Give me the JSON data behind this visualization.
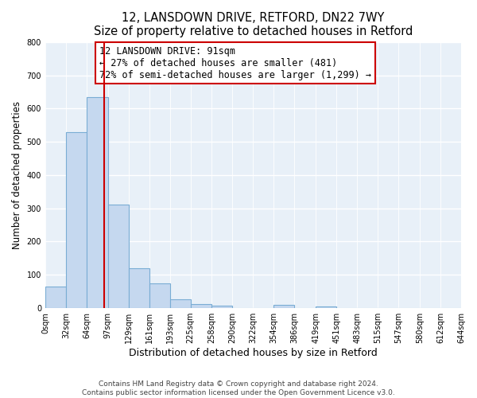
{
  "title": "12, LANSDOWN DRIVE, RETFORD, DN22 7WY",
  "subtitle": "Size of property relative to detached houses in Retford",
  "xlabel": "Distribution of detached houses by size in Retford",
  "ylabel": "Number of detached properties",
  "bin_edges": [
    0,
    32,
    64,
    97,
    129,
    161,
    193,
    225,
    258,
    290,
    322,
    354,
    386,
    419,
    451,
    483,
    515,
    547,
    580,
    612,
    644
  ],
  "bar_heights": [
    65,
    530,
    635,
    312,
    120,
    75,
    27,
    12,
    8,
    0,
    0,
    10,
    0,
    5,
    0,
    0,
    0,
    0,
    0,
    0
  ],
  "bar_color": "#c5d8ef",
  "bar_edge_color": "#7aadd4",
  "property_line_x": 91,
  "property_line_color": "#cc0000",
  "ylim": [
    0,
    800
  ],
  "yticks": [
    0,
    100,
    200,
    300,
    400,
    500,
    600,
    700,
    800
  ],
  "tick_labels": [
    "0sqm",
    "32sqm",
    "64sqm",
    "97sqm",
    "129sqm",
    "161sqm",
    "193sqm",
    "225sqm",
    "258sqm",
    "290sqm",
    "322sqm",
    "354sqm",
    "386sqm",
    "419sqm",
    "451sqm",
    "483sqm",
    "515sqm",
    "547sqm",
    "580sqm",
    "612sqm",
    "644sqm"
  ],
  "annotation_title": "12 LANSDOWN DRIVE: 91sqm",
  "annotation_line1": "← 27% of detached houses are smaller (481)",
  "annotation_line2": "72% of semi-detached houses are larger (1,299) →",
  "annotation_box_color": "#ffffff",
  "annotation_box_edge": "#cc0000",
  "footer_line1": "Contains HM Land Registry data © Crown copyright and database right 2024.",
  "footer_line2": "Contains public sector information licensed under the Open Government Licence v3.0.",
  "bg_color": "#ffffff",
  "plot_bg_color": "#e8f0f8",
  "grid_color": "#ffffff"
}
